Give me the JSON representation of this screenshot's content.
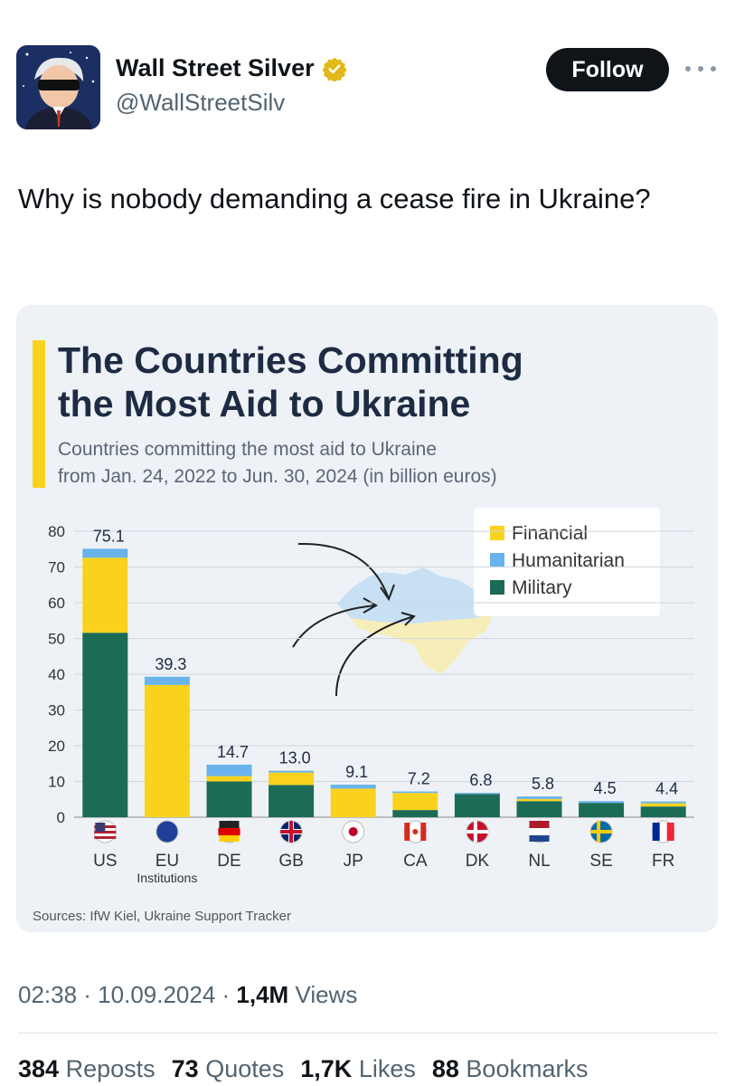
{
  "author": {
    "display_name": "Wall Street Silver",
    "handle": "@WallStreetSilv",
    "verified_icon": "gold-verified-badge-icon"
  },
  "follow_label": "Follow",
  "tweet_text": "Why is nobody demanding a cease fire in Ukraine?",
  "chart_data": {
    "type": "bar",
    "title_line1": "The Countries Committing",
    "title_line2": "the Most Aid to Ukraine",
    "subtitle_line1": "Countries committing the most aid to Ukraine",
    "subtitle_line2": "from Jan. 24, 2022 to Jun. 30, 2024 (in billion euros)",
    "categories": [
      "US",
      "EU",
      "DE",
      "GB",
      "JP",
      "CA",
      "DK",
      "NL",
      "SE",
      "FR"
    ],
    "sublabels": [
      "",
      "Institutions",
      "",
      "",
      "",
      "",
      "",
      "",
      "",
      ""
    ],
    "totals": [
      "75.1",
      "39.3",
      "14.7",
      "13.0",
      "9.1",
      "7.2",
      "6.8",
      "5.8",
      "4.5",
      "4.4"
    ],
    "series": [
      {
        "name": "Military",
        "color": "#1b6b57",
        "values": [
          51.6,
          0,
          10.0,
          9.0,
          0,
          2.0,
          6.5,
          4.5,
          4.0,
          3.0
        ]
      },
      {
        "name": "Financial",
        "color": "#fad21e",
        "values": [
          21.0,
          37.0,
          1.5,
          3.5,
          8.0,
          4.8,
          0,
          0.6,
          0,
          0.9
        ]
      },
      {
        "name": "Humanitarian",
        "color": "#68b3ec",
        "values": [
          2.5,
          2.3,
          3.2,
          0.5,
          1.1,
          0.4,
          0.3,
          0.7,
          0.5,
          0.5
        ]
      }
    ],
    "legend_order": [
      "Financial",
      "Humanitarian",
      "Military"
    ],
    "legend_position": "top-right",
    "ylim": [
      0,
      80
    ],
    "yticks": [
      0,
      10,
      20,
      30,
      40,
      50,
      60,
      70,
      80
    ],
    "grid": true,
    "source": "Sources: IfW Kiel, Ukraine Support Tracker"
  },
  "timestamp": {
    "time_date": "02:38 · 10.09.2024 · ",
    "views_count": "1,4M",
    "views_label": " Views"
  },
  "stats": {
    "reposts_count": "384",
    "reposts_label": "Reposts",
    "quotes_count": "73",
    "quotes_label": "Quotes",
    "likes_count": "1,7K",
    "likes_label": "Likes",
    "bookmarks_count": "88",
    "bookmarks_label": "Bookmarks"
  }
}
